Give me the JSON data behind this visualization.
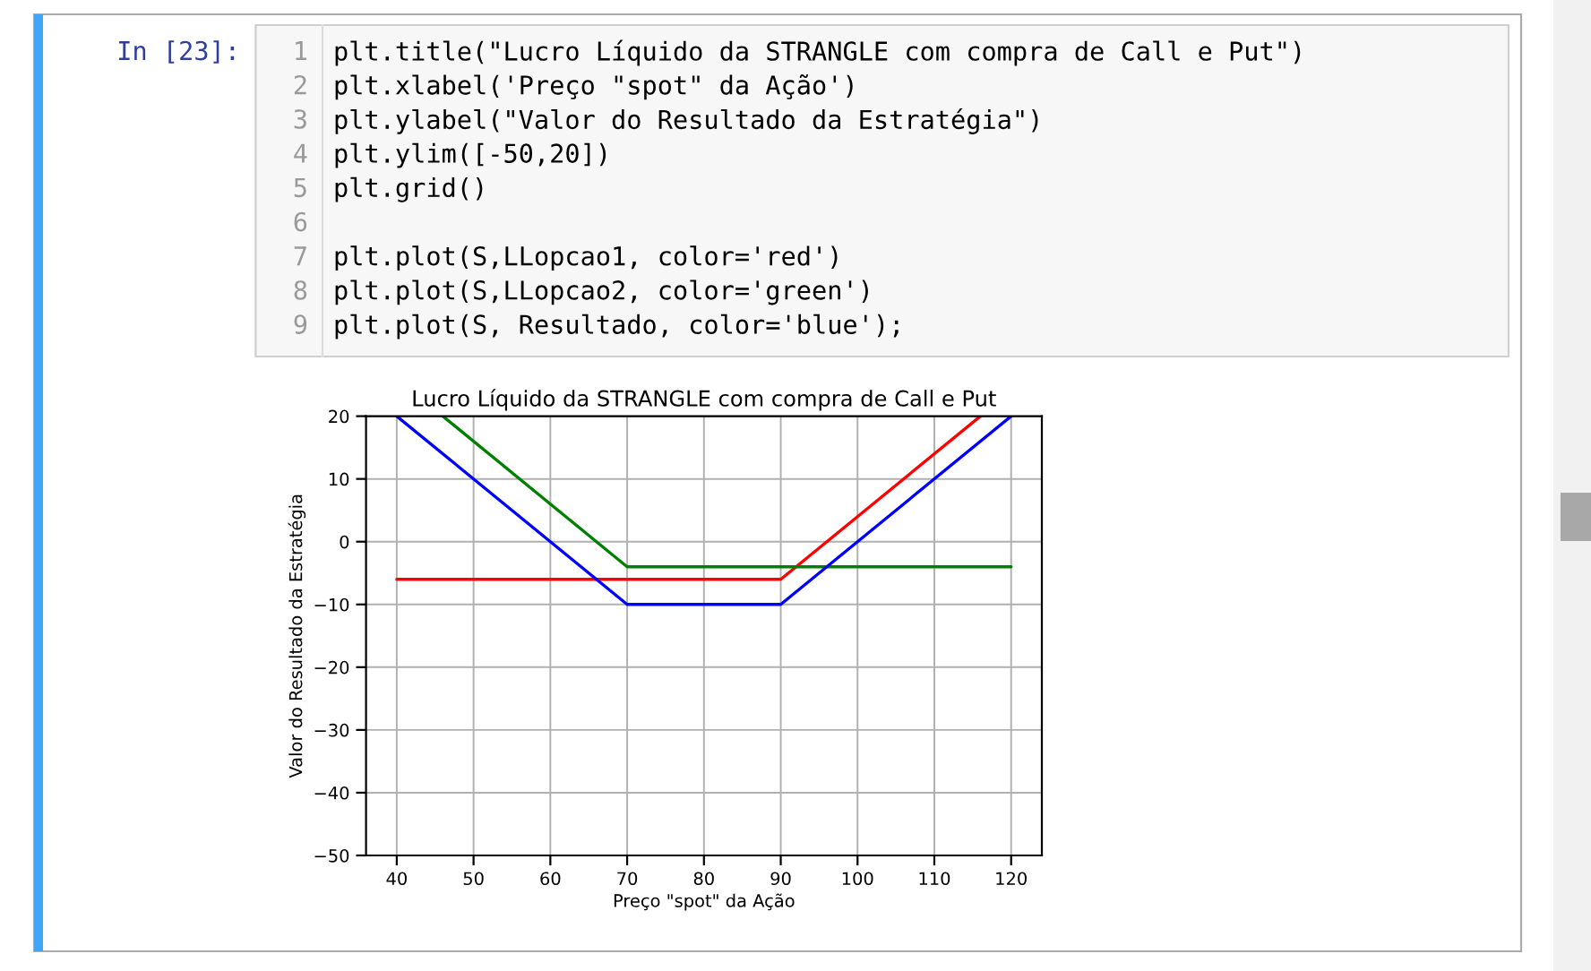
{
  "chart_data": {
    "type": "line",
    "title": "Lucro Líquido da STRANGLE com compra de Call e Put",
    "xlabel": "Preço \"spot\" da Ação",
    "ylabel": "Valor do Resultado da Estratégia",
    "series": [
      {
        "x": [
          40,
          90,
          116
        ],
        "values": [
          -6,
          -6,
          20
        ],
        "color": "#ff0000"
      },
      {
        "x": [
          46,
          70,
          120
        ],
        "values": [
          20,
          -4,
          -4
        ],
        "color": "#008000"
      },
      {
        "x": [
          40,
          70,
          90,
          120
        ],
        "values": [
          20,
          -10,
          -10,
          20
        ],
        "color": "#0000ff"
      }
    ],
    "xlim": [
      36,
      124
    ],
    "xticks": [
      40,
      50,
      60,
      70,
      80,
      90,
      100,
      110,
      120
    ],
    "ylim": [
      -50,
      20
    ],
    "yticks": [
      {
        "value": -50,
        "label": "−50"
      },
      {
        "value": -40,
        "label": "−40"
      },
      {
        "value": -30,
        "label": "−30"
      },
      {
        "value": -20,
        "label": "−20"
      },
      {
        "value": -10,
        "label": "−10"
      },
      0,
      10,
      20
    ],
    "grid": true,
    "annotations": [
      "In [23]:",
      "1",
      "2",
      "3",
      "4",
      "5",
      "6",
      "7",
      "8",
      "9",
      "plt.title(\"Lucro Líquido da STRANGLE com compra de Call e Put\")",
      "plt.xlabel('Preço \"spot\" da Ação')",
      "plt.ylabel(\"Valor do Resultado da Estratégia\")",
      "plt.ylim([-50,20])",
      "plt.grid()",
      "plt.plot(S,LLopcao1, color='red')",
      "plt.plot(S,LLopcao2, color='green')",
      "plt.plot(S, Resultado, color='blue');"
    ]
  }
}
